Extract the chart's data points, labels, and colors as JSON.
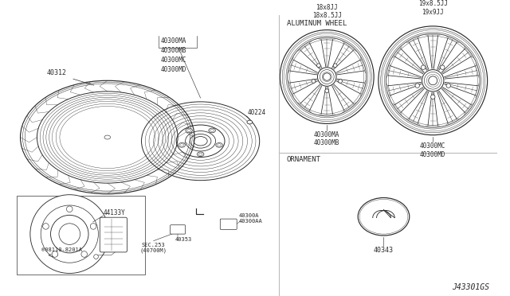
{
  "bg_color": "#ffffff",
  "line_color": "#2a2a2a",
  "fig_width": 6.4,
  "fig_height": 3.72,
  "dpi": 100,
  "section_labels": {
    "aluminum_wheel": "ALUMINUM WHEEL",
    "ornament": "ORNAMENT"
  },
  "part_labels": {
    "tire": "40312",
    "wheel_parts": "40300MA\n40300MB\n40300MC\n40300MD",
    "valve": "40224",
    "brake_ref": "44133Y",
    "bolt": "®08110-8201A\n  <E>",
    "sec": "SEC.253\n(40700M)",
    "weight1": "40353",
    "weight2": "40300A\n40300AA",
    "wheel18_size": "18x8JJ\n18x8.5JJ",
    "wheel18_parts": "40300MA\n40300MB",
    "wheel19_size": "19x8.5JJ\n19x9JJ",
    "wheel19_parts": "40300MC\n40300MD",
    "ornament_part": "40343",
    "diagram_id": "J43301GS"
  }
}
